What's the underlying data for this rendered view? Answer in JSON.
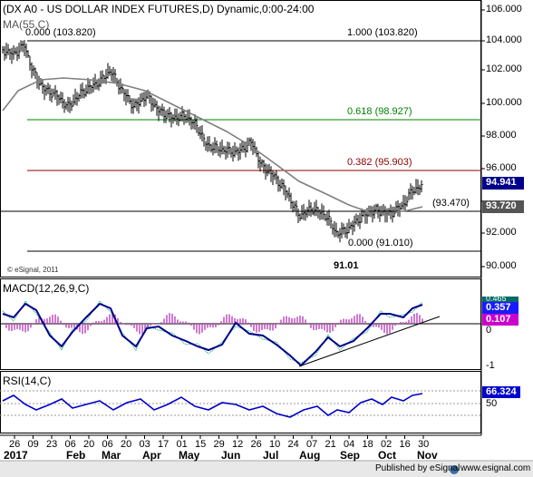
{
  "header": {
    "title": "(DX A0 - US DOLLAR INDEX FUTURES,D) Dynamic,0:00-24:00",
    "ma_label": "MA(55,C)",
    "copyright": "© eSignal, 2011"
  },
  "price_axis": {
    "ticks": [
      "106.000",
      "104.000",
      "102.000",
      "100.000",
      "98.000",
      "96.000",
      "94.000",
      "92.000",
      "90.000"
    ]
  },
  "annotations": {
    "fib_0_left": "0.000 (103.820)",
    "fib_100": "1.000 (103.820)",
    "fib_618": "0.618 (98.927)",
    "fib_382": "0.382 (95.903)",
    "fib_0_bottom": "0.000 (91.010)",
    "level_93470": "(93.470)",
    "low_label": "91.01"
  },
  "price_tags": {
    "last": "94.941",
    "ma": "93.720"
  },
  "macd": {
    "label": "MACD(12,26,9,C)",
    "ticks": [
      "0",
      "-1"
    ],
    "tag_macd": "0.357",
    "tag_signal": "0.107",
    "tag_hidden": "0.465"
  },
  "rsi": {
    "label": "RSI(14,C)",
    "ticks": [
      "50"
    ],
    "tag_value": "66.324"
  },
  "time_axis": {
    "days": [
      "26",
      "09",
      "23",
      "06",
      "20",
      "06",
      "20",
      "03",
      "17",
      "01",
      "15",
      "29",
      "12",
      "26",
      "10",
      "24",
      "07",
      "21",
      "04",
      "18",
      "02",
      "16",
      "30"
    ],
    "months": [
      "2017",
      "Feb",
      "Mar",
      "Apr",
      "May",
      "Jun",
      "Jul",
      "Aug",
      "Sep",
      "Oct",
      "Nov"
    ]
  },
  "footer": {
    "published": "Published by eSignal",
    "site": "www.esignal.com"
  },
  "colors": {
    "fib_100_line": "#000000",
    "fib_618_line": "#008000",
    "fib_382_line": "#8b0000",
    "ma_line": "#7f7f7f",
    "macd_line": "#00008b",
    "histogram": "#c04cc0",
    "rsi_line": "#0000cc",
    "tag_blue": "#0000cc",
    "tag_magenta": "#cc00cc",
    "tag_teal": "#008080"
  }
}
